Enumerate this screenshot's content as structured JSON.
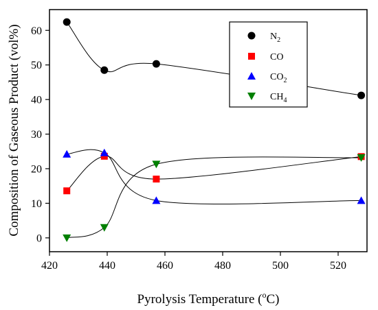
{
  "chart_data": {
    "type": "scatter",
    "title": "",
    "xlabel": "Pyrolysis Temperature (",
    "xlabel_sup": "o",
    "xlabel_tail": "C)",
    "ylabel": "Composition of Gaseous Product (vol%)",
    "xlim": [
      420,
      530
    ],
    "ylim": [
      -4,
      66
    ],
    "xticks": [
      420,
      440,
      460,
      480,
      500,
      520
    ],
    "yticks": [
      0,
      10,
      20,
      30,
      40,
      50,
      60
    ],
    "grid": false,
    "legend_position": "top-right",
    "x": [
      426,
      439,
      457,
      528
    ],
    "series": [
      {
        "name": "N",
        "name_sub": "2",
        "marker": "circle",
        "color": "#000000",
        "values": [
          62.4,
          48.5,
          50.3,
          41.2
        ]
      },
      {
        "name": "CO",
        "name_sub": "",
        "marker": "square",
        "color": "#ff0000",
        "values": [
          13.6,
          23.6,
          17.0,
          23.5
        ]
      },
      {
        "name": "CO",
        "name_sub": "2",
        "marker": "triangle-up",
        "color": "#0000ff",
        "values": [
          24.2,
          24.6,
          10.8,
          10.8
        ]
      },
      {
        "name": "CH",
        "name_sub": "4",
        "marker": "triangle-down",
        "color": "#008000",
        "values": [
          0.0,
          3.0,
          21.3,
          23.2
        ]
      }
    ]
  }
}
